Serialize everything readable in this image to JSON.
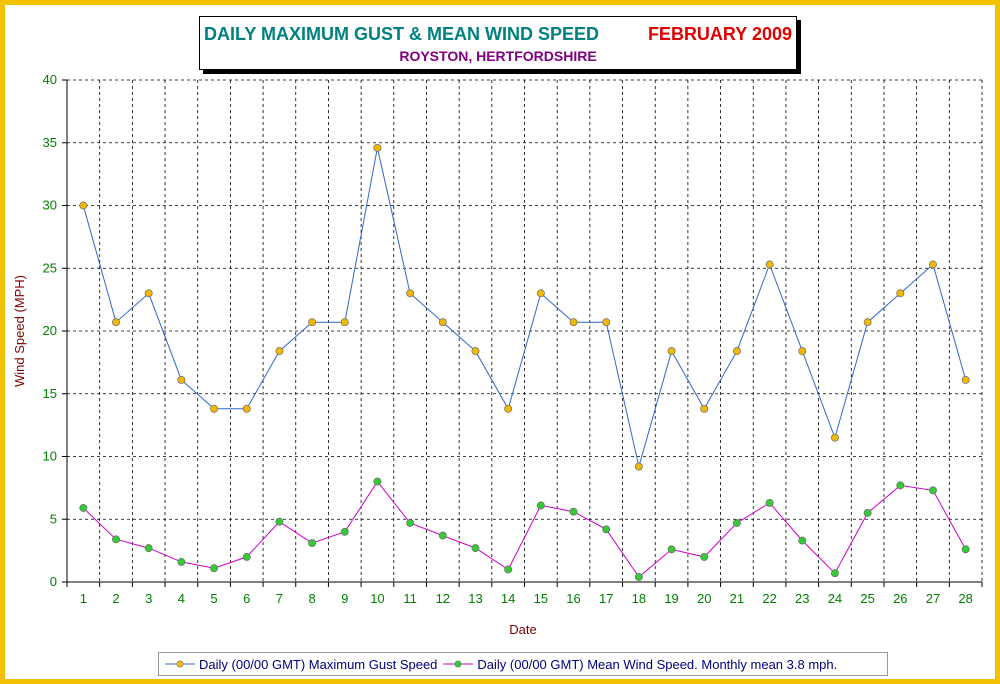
{
  "header": {
    "title": "DAILY MAXIMUM GUST & MEAN WIND SPEED",
    "period": "FEBRUARY 2009",
    "location": "ROYSTON, HERTFORDSHIRE"
  },
  "colors": {
    "frame": "#f2c200",
    "gust_line": "#3366cc",
    "gust_marker": "#f2b800",
    "mean_line": "#cc00cc",
    "mean_marker": "#33cc33",
    "tick_text": "#008000",
    "axis_label": "#800000"
  },
  "chart_data": {
    "type": "line",
    "xlabel": "Date",
    "ylabel": "Wind Speed (MPH)",
    "ylim": [
      0,
      40
    ],
    "yticks": [
      0,
      5,
      10,
      15,
      20,
      25,
      30,
      35,
      40
    ],
    "grid": true,
    "legend_position": "bottom",
    "categories": [
      "1",
      "2",
      "3",
      "4",
      "5",
      "6",
      "7",
      "8",
      "9",
      "10",
      "11",
      "12",
      "13",
      "14",
      "15",
      "16",
      "17",
      "18",
      "19",
      "20",
      "21",
      "22",
      "23",
      "24",
      "25",
      "26",
      "27",
      "28"
    ],
    "series": [
      {
        "name": "Daily (00/00 GMT) Maximum Gust Speed",
        "values": [
          30,
          20.7,
          23,
          16.1,
          13.8,
          13.8,
          18.4,
          20.7,
          20.7,
          34.6,
          23,
          20.7,
          18.4,
          13.8,
          23,
          20.7,
          20.7,
          9.2,
          18.4,
          13.8,
          18.4,
          25.3,
          18.4,
          11.5,
          20.7,
          23,
          25.3,
          16.1
        ]
      },
      {
        "name": "Daily (00/00 GMT) Mean Wind Speed. Monthly mean 3.8 mph.",
        "values": [
          5.9,
          3.4,
          2.7,
          1.6,
          1.1,
          2,
          4.8,
          3.1,
          4,
          8,
          4.7,
          3.7,
          2.7,
          1,
          6.1,
          5.6,
          4.2,
          0.4,
          2.6,
          2,
          4.7,
          6.3,
          3.3,
          0.7,
          5.5,
          7.7,
          7.3,
          2.6
        ]
      }
    ]
  }
}
